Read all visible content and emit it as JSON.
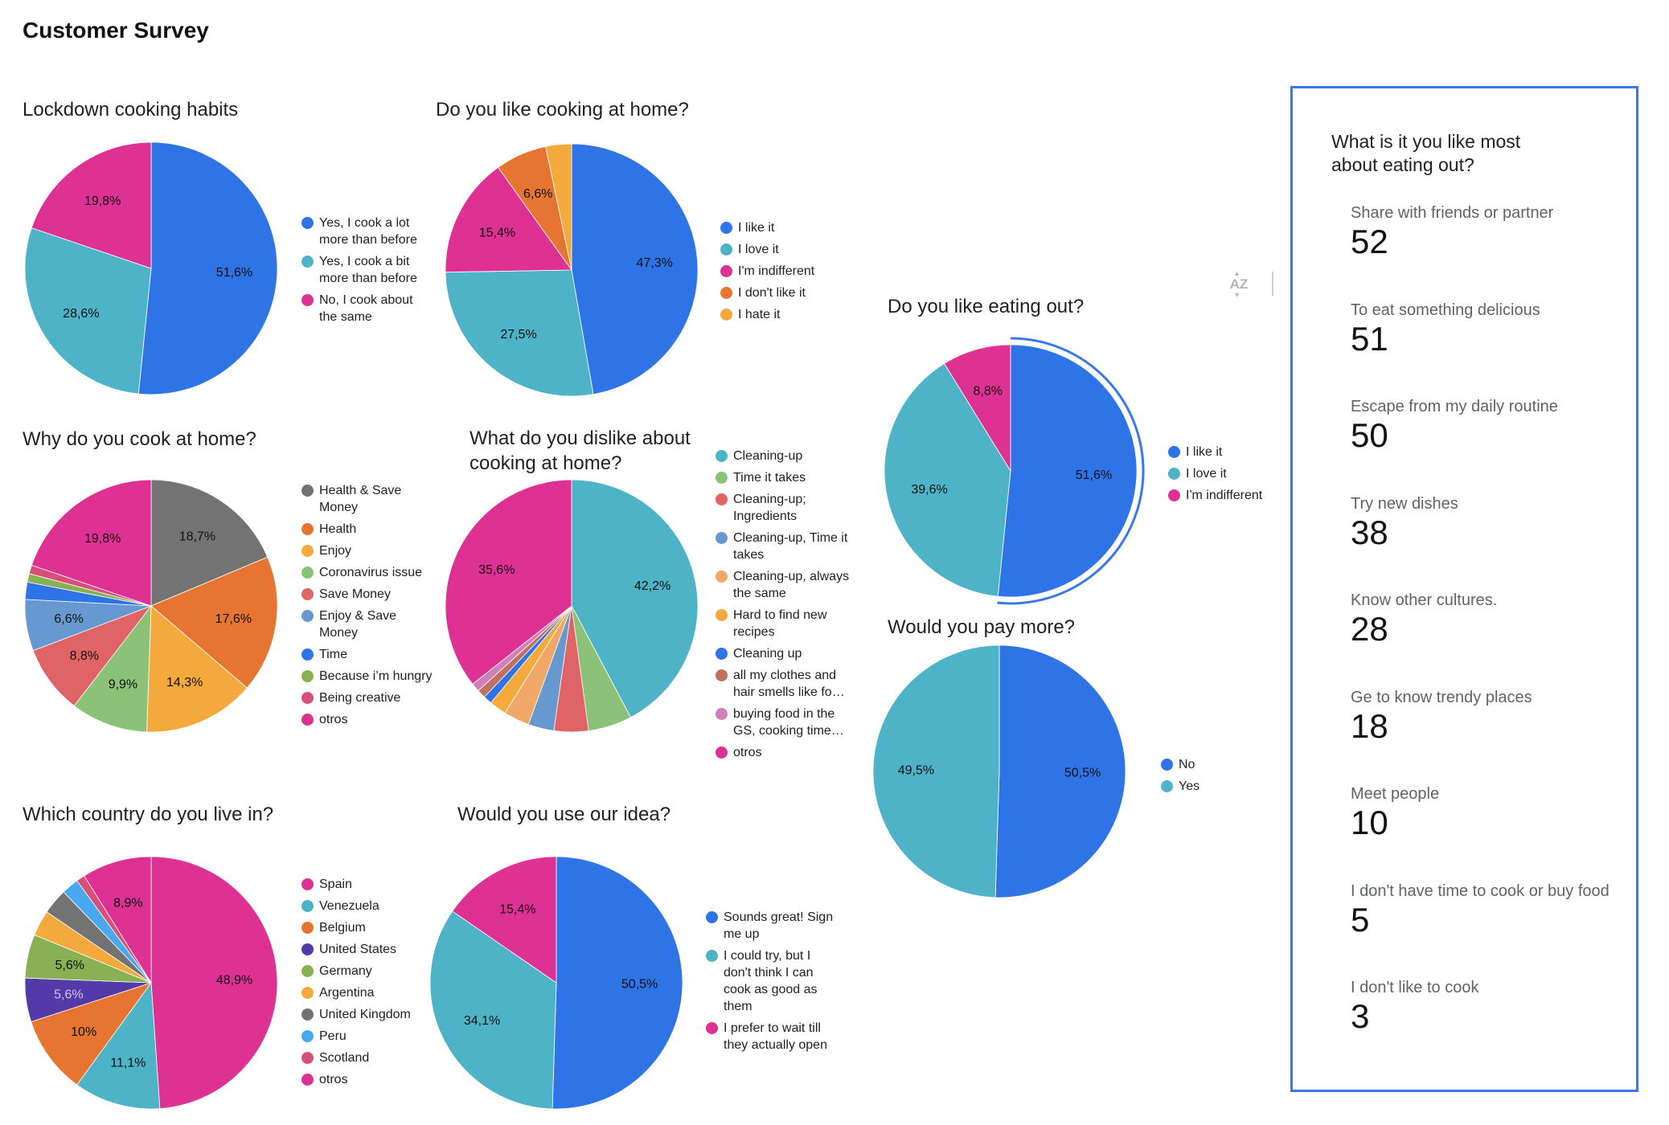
{
  "page": {
    "title": "Customer Survey"
  },
  "toolbar": {
    "sort_icon": "sort-az-icon",
    "more_icon": "more-vert-icon"
  },
  "colors": {
    "blue": "#2f74e6",
    "teal": "#4fb3c8",
    "magenta": "#dd3293",
    "orange": "#e57530",
    "yellow": "#f3a93c",
    "grey": "#737373",
    "light_green": "#8cc277",
    "salmon": "#e06466",
    "steel_blue": "#6898d0",
    "olive": "#88b153",
    "purple": "#5439a8",
    "sky": "#4aa8ee",
    "rose": "#d8507a",
    "brown": "#c07060",
    "pink": "#d080b8",
    "peach": "#f0a868",
    "highlight": "#3b78e7"
  },
  "chart_data": [
    {
      "id": "lockdown",
      "type": "pie",
      "title": "Lockdown cooking habits",
      "labels": [
        "Yes, I cook a lot more than before",
        "Yes, I cook a bit more than before",
        "No, I cook about the same"
      ],
      "legend_labels": [
        "Yes, I cook a lot\nmore than before",
        "Yes, I cook a bit\nmore than before",
        "No, I cook about\nthe same"
      ],
      "values": [
        51.6,
        28.6,
        19.8
      ],
      "data_labels": [
        "51,6%",
        "28,6%",
        "19,8%"
      ],
      "colors": [
        "#2f74e6",
        "#4fb3c8",
        "#dd3293"
      ],
      "legend": "right"
    },
    {
      "id": "like-cooking",
      "type": "pie",
      "title": "Do you like cooking at home?",
      "labels": [
        "I like it",
        "I love it",
        "I'm indifferent",
        "I don't like it",
        "I hate it"
      ],
      "legend_labels": [
        "I like it",
        "I love it",
        "I'm indifferent",
        "I don't like it",
        "I hate it"
      ],
      "values": [
        47.3,
        27.5,
        15.4,
        6.6,
        3.3
      ],
      "data_labels": [
        "47,3%",
        "27,5%",
        "15,4%",
        "6,6%",
        ""
      ],
      "colors": [
        "#2f74e6",
        "#4fb3c8",
        "#dd3293",
        "#e57530",
        "#f3a93c"
      ],
      "legend": "right"
    },
    {
      "id": "why-cook",
      "type": "pie",
      "title": "Why do you cook at home?",
      "labels": [
        "Health & Save Money",
        "Health",
        "Enjoy",
        "Coronavirus issue",
        "Save Money",
        "Enjoy & Save Money",
        "Time",
        "Because i’m hungry",
        "Being creative",
        "otros"
      ],
      "legend_labels": [
        "Health & Save\nMoney",
        "Health",
        "Enjoy",
        "Coronavirus issue",
        "Save Money",
        "Enjoy & Save\nMoney",
        "Time",
        "Because i’m hungry",
        "Being creative",
        "otros"
      ],
      "values": [
        18.7,
        17.6,
        14.3,
        9.9,
        8.8,
        6.6,
        2.2,
        1.1,
        1.1,
        19.8
      ],
      "data_labels": [
        "18,7%",
        "17,6%",
        "14,3%",
        "9,9%",
        "8,8%",
        "6,6%",
        "",
        "",
        "",
        "19,8%"
      ],
      "colors": [
        "#737373",
        "#e57530",
        "#f3a93c",
        "#8cc277",
        "#e06466",
        "#6898d0",
        "#2f74e6",
        "#88b153",
        "#d8507a",
        "#dd3293"
      ],
      "legend": "right"
    },
    {
      "id": "dislike",
      "type": "pie",
      "title": "What do you dislike about\ncooking at home?",
      "labels": [
        "Cleaning-up",
        "Time it takes",
        "Cleaning-up; Ingredients",
        "Cleaning-up, Time it takes",
        "Cleaning-up, always the same",
        "Hard to find new recipes",
        "Cleaning up",
        "all my clothes and hair smells like fo…",
        "buying food in the GS, cooking time…",
        "otros"
      ],
      "legend_labels": [
        "Cleaning-up",
        "Time it takes",
        "Cleaning-up;\nIngredients",
        "Cleaning-up, Time it\ntakes",
        "Cleaning-up, always\nthe same",
        "Hard to find new\nrecipes",
        "Cleaning up",
        "all my clothes and\nhair smells like fo…",
        "buying food in the\nGS, cooking time…",
        "otros"
      ],
      "values": [
        42.2,
        5.6,
        4.4,
        3.3,
        3.3,
        2.2,
        1.1,
        1.1,
        1.1,
        35.6
      ],
      "data_labels": [
        "42,2%",
        "",
        "",
        "",
        "",
        "",
        "",
        "",
        "",
        "35,6%"
      ],
      "colors": [
        "#4fb3c8",
        "#8cc277",
        "#e06466",
        "#6898d0",
        "#f0a868",
        "#f3a93c",
        "#2f74e6",
        "#c07060",
        "#d080b8",
        "#dd3293"
      ],
      "legend": "right"
    },
    {
      "id": "country",
      "type": "pie",
      "title": "Which country do you live in?",
      "labels": [
        "Spain",
        "Venezuela",
        "Belgium",
        "United States",
        "Germany",
        "Argentina",
        "United Kingdom",
        "Peru",
        "Scotland",
        "otros"
      ],
      "legend_labels": [
        "Spain",
        "Venezuela",
        "Belgium",
        "United States",
        "Germany",
        "Argentina",
        "United Kingdom",
        "Peru",
        "Scotland",
        "otros"
      ],
      "values": [
        48.9,
        11.1,
        10.0,
        5.6,
        5.6,
        3.3,
        3.3,
        2.2,
        1.1,
        8.9
      ],
      "data_labels": [
        "48,9%",
        "11,1%",
        "10%",
        "5,6%",
        "5,6%",
        "",
        "",
        "",
        "",
        "8,9%"
      ],
      "colors": [
        "#dd3293",
        "#4fb3c8",
        "#e57530",
        "#5439a8",
        "#88b153",
        "#f3a93c",
        "#737373",
        "#4aa8ee",
        "#d8507a",
        "#dd3293"
      ],
      "label_colors": [
        "#111",
        "#111",
        "#111",
        "#c9c6e6",
        "#111",
        "#111",
        "#111",
        "#111",
        "#111",
        "#111"
      ],
      "legend": "right"
    },
    {
      "id": "use-idea",
      "type": "pie",
      "title": "Would you use our idea?",
      "labels": [
        "Sounds great! Sign me up",
        "I could try, but I don't think I can cook as good as them",
        "I prefer to wait till they actually open"
      ],
      "legend_labels": [
        "Sounds great! Sign\nme up",
        "I could try, but I\ndon't think I can\ncook as good as\nthem",
        "I prefer to wait till\nthey actually open"
      ],
      "values": [
        50.5,
        34.1,
        15.4
      ],
      "data_labels": [
        "50,5%",
        "34,1%",
        "15,4%"
      ],
      "colors": [
        "#2f74e6",
        "#4fb3c8",
        "#dd3293"
      ],
      "legend": "right"
    },
    {
      "id": "eating-out",
      "type": "pie",
      "title": "Do you like eating out?",
      "labels": [
        "I like it",
        "I love it",
        "I'm indifferent"
      ],
      "legend_labels": [
        "I like it",
        "I love it",
        "I'm indifferent"
      ],
      "values": [
        51.6,
        39.6,
        8.8
      ],
      "data_labels": [
        "51,6%",
        "39,6%",
        "8,8%"
      ],
      "colors": [
        "#2f74e6",
        "#4fb3c8",
        "#dd3293"
      ],
      "highlighted_slice": 0,
      "legend": "right"
    },
    {
      "id": "pay-more",
      "type": "pie",
      "title": "Would you pay more?",
      "labels": [
        "No",
        "Yes"
      ],
      "legend_labels": [
        "No",
        "Yes"
      ],
      "values": [
        50.5,
        49.5
      ],
      "data_labels": [
        "50,5%",
        "49,5%"
      ],
      "colors": [
        "#2f74e6",
        "#4fb3c8"
      ],
      "legend": "right"
    }
  ],
  "scorecard": {
    "title": "What is it you like most\nabout eating out?",
    "metrics": [
      {
        "label": "Share with friends or partner",
        "value": "52"
      },
      {
        "label": "To eat something delicious",
        "value": "51"
      },
      {
        "label": "Escape from my daily routine",
        "value": "50"
      },
      {
        "label": "Try new dishes",
        "value": "38"
      },
      {
        "label": "Know other cultures.",
        "value": "28"
      },
      {
        "label": "Ge to know trendy places",
        "value": "18"
      },
      {
        "label": "Meet people",
        "value": "10"
      },
      {
        "label": "I don't have time to cook or buy food",
        "value": "5"
      },
      {
        "label": "I don't like to cook",
        "value": "3"
      }
    ]
  }
}
